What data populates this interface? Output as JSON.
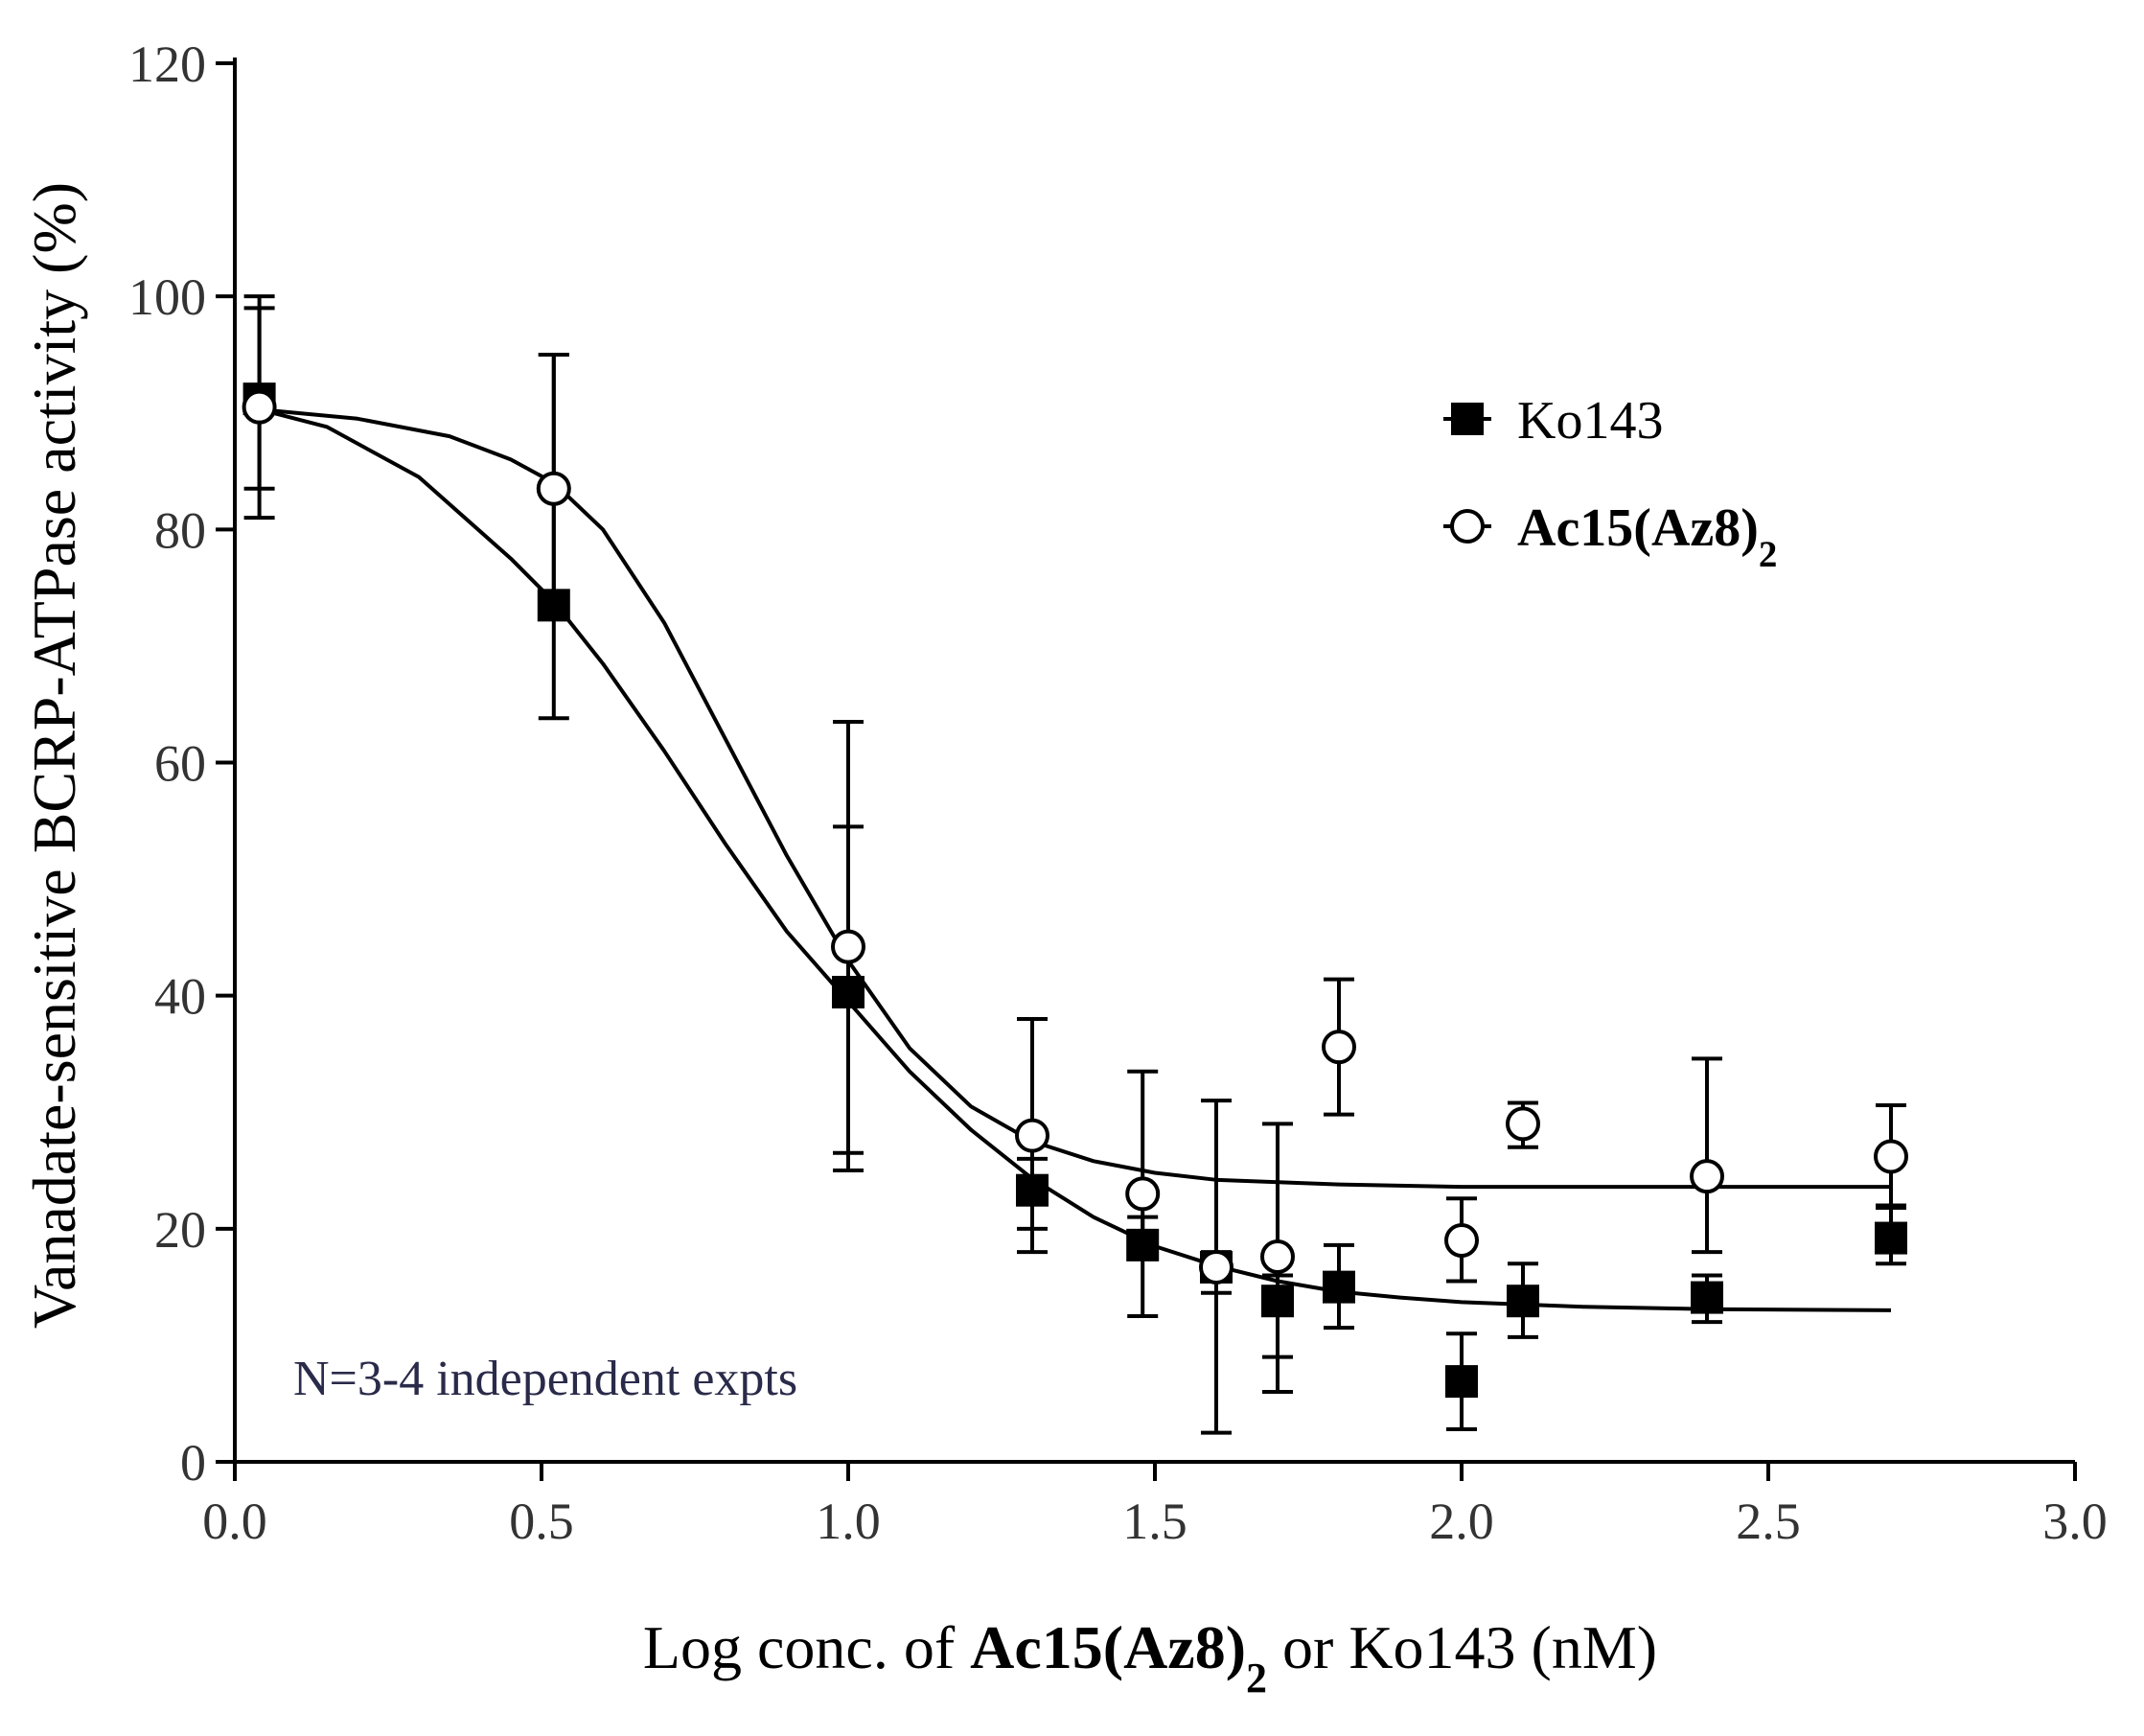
{
  "chart_data": {
    "type": "scatter",
    "title": "",
    "xlabel": {
      "parts": [
        {
          "text": "Log conc. of ",
          "bold": false
        },
        {
          "text": "Ac15(Az8)",
          "bold": true
        },
        {
          "text": "2",
          "bold": true,
          "sub": true
        },
        {
          "text": " or Ko143 (nM)",
          "bold": false
        }
      ]
    },
    "ylabel": "Vanadate-sensitive BCRP-ATPase activity (%)",
    "xlim": [
      0,
      3.0
    ],
    "ylim": [
      0,
      120
    ],
    "xticks": [
      "0.0",
      "0.5",
      "1.0",
      "1.5",
      "2.0",
      "2.5",
      "3.0"
    ],
    "yticks": [
      "0",
      "20",
      "40",
      "60",
      "80",
      "100",
      "120"
    ],
    "grid": false,
    "legend_position": "top-right",
    "annotation": "N=3-4 independent expts",
    "series": [
      {
        "name": "Ko143",
        "marker": "filled-square",
        "color": "#000000",
        "legend": {
          "parts": [
            {
              "text": "Ko143",
              "bold": false
            }
          ]
        },
        "points": [
          {
            "x": 0.04,
            "y": 91.2,
            "err_low": 81.0,
            "err_high": 100.0
          },
          {
            "x": 0.52,
            "y": 73.5,
            "err_low": 63.8,
            "err_high": 95.0
          },
          {
            "x": 1.0,
            "y": 40.3,
            "err_low": 26.5,
            "err_high": 54.5
          },
          {
            "x": 1.3,
            "y": 23.3,
            "err_low": 18.0,
            "err_high": 26.0
          },
          {
            "x": 1.48,
            "y": 18.6,
            "err_low": 12.5,
            "err_high": 21.0
          },
          {
            "x": 1.6,
            "y": 16.7,
            "err_low": 2.5,
            "err_high": 31.0
          },
          {
            "x": 1.7,
            "y": 13.8,
            "err_low": 6.0,
            "err_high": 16.0
          },
          {
            "x": 1.8,
            "y": 15.0,
            "err_low": 11.5,
            "err_high": 18.6
          },
          {
            "x": 2.0,
            "y": 6.9,
            "err_low": 2.8,
            "err_high": 11.0
          },
          {
            "x": 2.1,
            "y": 13.8,
            "err_low": 10.7,
            "err_high": 17.0
          },
          {
            "x": 2.4,
            "y": 14.1,
            "err_low": 12.0,
            "err_high": 16.0
          },
          {
            "x": 2.7,
            "y": 19.2,
            "err_low": 17.0,
            "err_high": 21.8
          }
        ],
        "curve": [
          {
            "x": 0.04,
            "y": 90.3
          },
          {
            "x": 0.15,
            "y": 88.8
          },
          {
            "x": 0.3,
            "y": 84.5
          },
          {
            "x": 0.45,
            "y": 77.5
          },
          {
            "x": 0.52,
            "y": 73.8
          },
          {
            "x": 0.6,
            "y": 68.5
          },
          {
            "x": 0.7,
            "y": 61.0
          },
          {
            "x": 0.8,
            "y": 53.0
          },
          {
            "x": 0.9,
            "y": 45.5
          },
          {
            "x": 1.0,
            "y": 39.5
          },
          {
            "x": 1.1,
            "y": 33.5
          },
          {
            "x": 1.2,
            "y": 28.5
          },
          {
            "x": 1.3,
            "y": 24.3
          },
          {
            "x": 1.4,
            "y": 21.0
          },
          {
            "x": 1.5,
            "y": 18.5
          },
          {
            "x": 1.6,
            "y": 16.8
          },
          {
            "x": 1.7,
            "y": 15.5
          },
          {
            "x": 1.8,
            "y": 14.6
          },
          {
            "x": 1.9,
            "y": 14.1
          },
          {
            "x": 2.0,
            "y": 13.7
          },
          {
            "x": 2.2,
            "y": 13.3
          },
          {
            "x": 2.4,
            "y": 13.1
          },
          {
            "x": 2.7,
            "y": 13.0
          }
        ]
      },
      {
        "name": "Ac15(Az8)2",
        "marker": "open-circle",
        "color": "#000000",
        "legend": {
          "parts": [
            {
              "text": "Ac15(Az8)",
              "bold": true
            },
            {
              "text": "2",
              "bold": true,
              "sub": true
            }
          ]
        },
        "points": [
          {
            "x": 0.04,
            "y": 90.5,
            "err_low": 83.5,
            "err_high": 99.0
          },
          {
            "x": 0.52,
            "y": 83.5,
            "err_low": 73.5,
            "err_high": 95.0
          },
          {
            "x": 1.0,
            "y": 44.2,
            "err_low": 25.0,
            "err_high": 63.5
          },
          {
            "x": 1.3,
            "y": 28.0,
            "err_low": 20.0,
            "err_high": 38.0
          },
          {
            "x": 1.48,
            "y": 23.0,
            "err_low": 19.0,
            "err_high": 33.5
          },
          {
            "x": 1.6,
            "y": 16.7,
            "err_low": 14.5,
            "err_high": 18.0
          },
          {
            "x": 1.7,
            "y": 17.6,
            "err_low": 9.0,
            "err_high": 29.0
          },
          {
            "x": 1.8,
            "y": 35.6,
            "err_low": 29.8,
            "err_high": 41.4
          },
          {
            "x": 2.0,
            "y": 19.0,
            "err_low": 15.5,
            "err_high": 22.6
          },
          {
            "x": 2.1,
            "y": 29.0,
            "err_low": 27.0,
            "err_high": 30.8
          },
          {
            "x": 2.4,
            "y": 24.5,
            "err_low": 18.0,
            "err_high": 34.6
          },
          {
            "x": 2.7,
            "y": 26.2,
            "err_low": 22.0,
            "err_high": 30.6
          }
        ],
        "curve": [
          {
            "x": 0.04,
            "y": 90.3
          },
          {
            "x": 0.2,
            "y": 89.5
          },
          {
            "x": 0.35,
            "y": 88.0
          },
          {
            "x": 0.45,
            "y": 86.0
          },
          {
            "x": 0.52,
            "y": 84.0
          },
          {
            "x": 0.6,
            "y": 80.0
          },
          {
            "x": 0.7,
            "y": 72.0
          },
          {
            "x": 0.8,
            "y": 62.0
          },
          {
            "x": 0.9,
            "y": 52.0
          },
          {
            "x": 1.0,
            "y": 43.0
          },
          {
            "x": 1.1,
            "y": 35.5
          },
          {
            "x": 1.2,
            "y": 30.5
          },
          {
            "x": 1.3,
            "y": 27.5
          },
          {
            "x": 1.4,
            "y": 25.8
          },
          {
            "x": 1.5,
            "y": 24.8
          },
          {
            "x": 1.6,
            "y": 24.2
          },
          {
            "x": 1.8,
            "y": 23.8
          },
          {
            "x": 2.0,
            "y": 23.6
          },
          {
            "x": 2.3,
            "y": 23.6
          },
          {
            "x": 2.7,
            "y": 23.6
          }
        ]
      }
    ]
  }
}
